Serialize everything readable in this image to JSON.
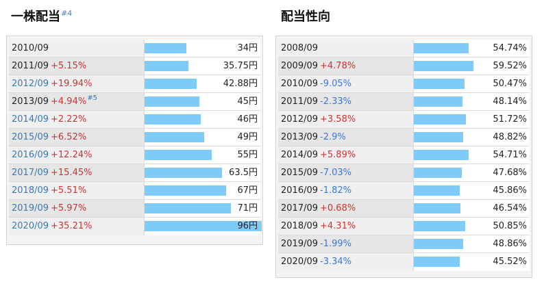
{
  "dividend_panel": {
    "title": "一株配当",
    "title_note": "#4",
    "rows": [
      {
        "year": "2010/09",
        "change": "",
        "dir": "",
        "note": "",
        "value": "34円",
        "num": 34,
        "link": false
      },
      {
        "year": "2011/09",
        "change": "+5.15%",
        "dir": "up",
        "note": "",
        "value": "35.75円",
        "num": 35.75,
        "link": false
      },
      {
        "year": "2012/09",
        "change": "+19.94%",
        "dir": "up",
        "note": "",
        "value": "42.88円",
        "num": 42.88,
        "link": true
      },
      {
        "year": "2013/09",
        "change": "+4.94%",
        "dir": "up",
        "note": "#5",
        "value": "45円",
        "num": 45,
        "link": false
      },
      {
        "year": "2014/09",
        "change": "+2.22%",
        "dir": "up",
        "note": "",
        "value": "46円",
        "num": 46,
        "link": true
      },
      {
        "year": "2015/09",
        "change": "+6.52%",
        "dir": "up",
        "note": "",
        "value": "49円",
        "num": 49,
        "link": true
      },
      {
        "year": "2016/09",
        "change": "+12.24%",
        "dir": "up",
        "note": "",
        "value": "55円",
        "num": 55,
        "link": true
      },
      {
        "year": "2017/09",
        "change": "+15.45%",
        "dir": "up",
        "note": "",
        "value": "63.5円",
        "num": 63.5,
        "link": true
      },
      {
        "year": "2018/09",
        "change": "+5.51%",
        "dir": "up",
        "note": "",
        "value": "67円",
        "num": 67,
        "link": true
      },
      {
        "year": "2019/09",
        "change": "+5.97%",
        "dir": "up",
        "note": "",
        "value": "71円",
        "num": 71,
        "link": true
      },
      {
        "year": "2020/09",
        "change": "+35.21%",
        "dir": "up",
        "note": "",
        "value": "96円",
        "num": 96,
        "link": true
      }
    ]
  },
  "payout_panel": {
    "title": "配当性向",
    "rows": [
      {
        "year": "2008/09",
        "change": "",
        "dir": "",
        "value": "54.74%",
        "num": 54.74
      },
      {
        "year": "2009/09",
        "change": "+4.78%",
        "dir": "up",
        "value": "59.52%",
        "num": 59.52
      },
      {
        "year": "2010/09",
        "change": "-9.05%",
        "dir": "down",
        "value": "50.47%",
        "num": 50.47
      },
      {
        "year": "2011/09",
        "change": "-2.33%",
        "dir": "down",
        "value": "48.14%",
        "num": 48.14
      },
      {
        "year": "2012/09",
        "change": "+3.58%",
        "dir": "up",
        "value": "51.72%",
        "num": 51.72
      },
      {
        "year": "2013/09",
        "change": "-2.9%",
        "dir": "down",
        "value": "48.82%",
        "num": 48.82
      },
      {
        "year": "2014/09",
        "change": "+5.89%",
        "dir": "up",
        "value": "54.71%",
        "num": 54.71
      },
      {
        "year": "2015/09",
        "change": "-7.03%",
        "dir": "down",
        "value": "47.68%",
        "num": 47.68
      },
      {
        "year": "2016/09",
        "change": "-1.82%",
        "dir": "down",
        "value": "45.86%",
        "num": 45.86
      },
      {
        "year": "2017/09",
        "change": "+0.68%",
        "dir": "up",
        "value": "46.54%",
        "num": 46.54
      },
      {
        "year": "2018/09",
        "change": "+4.31%",
        "dir": "up",
        "value": "50.85%",
        "num": 50.85
      },
      {
        "year": "2019/09",
        "change": "-1.99%",
        "dir": "down",
        "value": "48.86%",
        "num": 48.86
      },
      {
        "year": "2020/09",
        "change": "-3.34%",
        "dir": "down",
        "value": "45.52%",
        "num": 45.52
      }
    ]
  },
  "colors": {
    "bar": "#7fccfb",
    "up": "#cc3333",
    "down": "#3c78d8",
    "link": "#3c78b5"
  }
}
